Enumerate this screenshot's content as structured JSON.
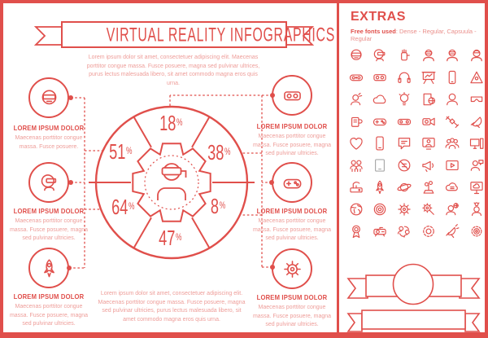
{
  "colors": {
    "accent": "#e04f4b",
    "soft_text": "#ee9d99",
    "gray_icon": "#a9a9a9"
  },
  "banner": {
    "title": "VIRTUAL REALITY INFOGRAPHICS"
  },
  "intro_text": "Lorem ipsum dolor sit amet, consectetuer adipiscing elit. Maecenas porttitor congue massa. Fusce posuere, magna sed pulvinar ultrices, purus lectus malesuada libero, sit amet commodo magna eros quis urna.",
  "chart_data": {
    "type": "pie",
    "unit": "%",
    "segments": [
      {
        "position": "top",
        "value": 18
      },
      {
        "position": "upper-right",
        "value": 38
      },
      {
        "position": "lower-right",
        "value": 8
      },
      {
        "position": "bottom",
        "value": 47
      },
      {
        "position": "lower-left",
        "value": 64
      },
      {
        "position": "upper-left",
        "value": 51
      }
    ],
    "center_icon": "person-wearing-vr-headset-in-gear"
  },
  "callouts": {
    "left": [
      {
        "icon": "vr-head-front",
        "heading": "LOREM IPSUM DOLOR",
        "body": "Maecenas porttitor congue massa. Fusce posuere."
      },
      {
        "icon": "vr-head-side",
        "heading": "LOREM IPSUM DOLOR",
        "body": "Maecenas porttitor congue massa. Fusce posuere, magna sed pulvinar ultricies."
      },
      {
        "icon": "rocket",
        "heading": "LOREM IPSUM DOLOR",
        "body": "Maecenas porttitor congue massa. Fusce posuere, magna sed pulvinar ultricies."
      }
    ],
    "right": [
      {
        "icon": "vr-headset-device",
        "heading": "LOREM IPSUM DOLOR",
        "body": "Maecenas porttitor congue massa. Fusce posuere, magna sed pulvinar ultricies."
      },
      {
        "icon": "gamepad",
        "heading": "LOREM IPSUM DOLOR",
        "body": "Maecenas porttitor congue massa. Fusce posuere, magna sed pulvinar ultricies."
      },
      {
        "icon": "gear",
        "heading": "LOREM IPSUM DOLOR",
        "body": "Maecenas porttitor congue massa. Fusce posuere, magna sed pulvinar ultricies."
      }
    ]
  },
  "footer_text": "Lorem ipsum dolor sit amet, consectetuer adipiscing elit. Maecenas porttitor congue massa. Fusce posuere, magna sed pulvinar ultricies, purus lectus malesuada libero, sit amet commodo magna eros quis urna.",
  "extras": {
    "title": "EXTRAS",
    "fonts_label": "Free fonts used",
    "fonts_value": ": Dense - Regular, Capsuula - Regular",
    "icons": [
      "vr-head-front",
      "vr-head-side",
      "wired-glove",
      "vr-person",
      "vr-person-2",
      "helmet-person",
      "vr-controller",
      "vr-headset-device",
      "headphones",
      "presentation-board",
      "smartphone",
      "pyramid",
      "person-signal",
      "cloud",
      "idea-bulb",
      "document-globe",
      "avatar",
      "vr-goggles",
      "mug-device",
      "gamepad",
      "handheld-console",
      "camcorder",
      "satellite",
      "drone-dish",
      "heart",
      "phone",
      "chat-bubble",
      "video-call",
      "people-group",
      "workstation",
      "team",
      "tablet-gray",
      "blocked-sign",
      "megaphone",
      "video-player",
      "person-chat",
      "router",
      "rocket",
      "globe-orbit",
      "hand-plant",
      "cloud-sync",
      "monitor-cloud",
      "earth-globe",
      "radar-target",
      "gear",
      "gear-wrench",
      "person-globe",
      "person-idea",
      "award-ribbon",
      "projector",
      "people-sync",
      "gear-ring",
      "satellite-dish",
      "gear-badge"
    ]
  }
}
